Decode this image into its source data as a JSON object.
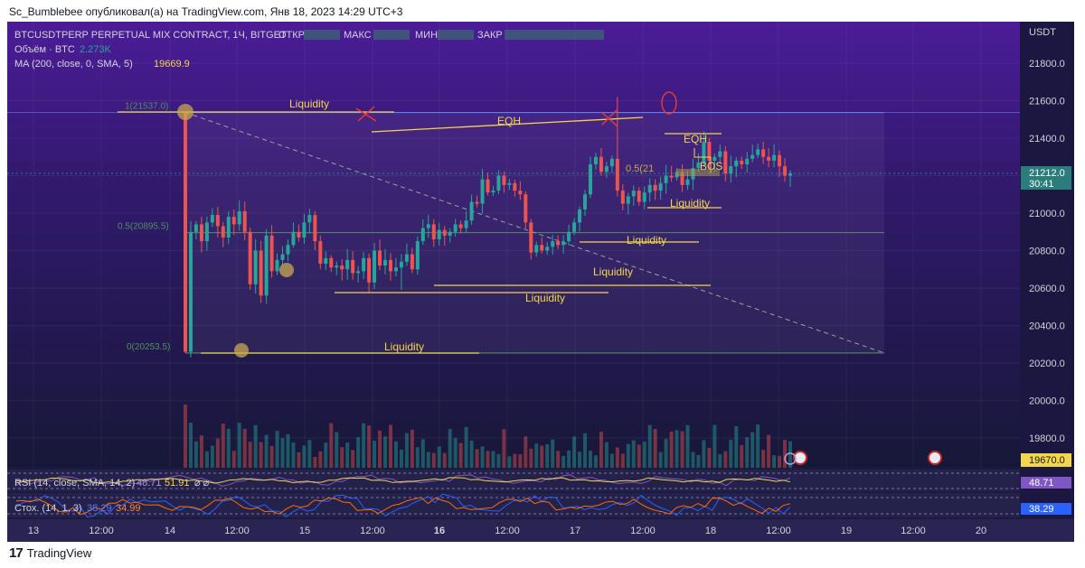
{
  "caption": "Sc_Bumblebee опубликовал(а) на TradingView.com, Янв 18, 2023 14:29 UTC+3",
  "footer": {
    "brand": "TradingView",
    "logo_icon": "tradingview-logo-icon"
  },
  "colors": {
    "bg_top": "#4a1d96",
    "bg_bottom": "#15183a",
    "up": "#26a69a",
    "down": "#ef5350",
    "annotation": "#f2d64b",
    "fib": "#5b9c5b",
    "level_blue": "#5a7cff",
    "rsi": "#7e57c2",
    "stoch_k": "#2962ff",
    "stoch_d": "#ff6d00"
  },
  "header": {
    "symbol_line": "BTCUSDTPERP PERPETUAL MIX CONTRACT, 1Ч, BITGET",
    "ohlc_labels": [
      "ОТКР",
      "МАКС",
      "МИН",
      "ЗАКР"
    ],
    "volume_label": "Объём · BTC",
    "volume_value": "2.273K",
    "ma_label": "MA (200, close, 0, SMA, 5)",
    "ma_value": "19669.9"
  },
  "price_axis": {
    "currency": "USDT",
    "ticks": [
      "21800.0",
      "21600.0",
      "21400.0",
      "21200.0",
      "21000.0",
      "20800.0",
      "20600.0",
      "20400.0",
      "20200.0",
      "20000.0",
      "19800.0"
    ],
    "last_price": "21212.0",
    "countdown": "30:41",
    "ma_badge": "19670.0"
  },
  "time_axis": {
    "ticks": [
      "13",
      "12:00",
      "14",
      "12:00",
      "15",
      "12:00",
      "16",
      "12:00",
      "17",
      "12:00",
      "18",
      "12:00",
      "19",
      "12:00",
      "20"
    ]
  },
  "fib_labels": [
    "1(21537.0)",
    "0.5(20895.5)",
    "0(20253.5)"
  ],
  "annotations": {
    "liquidity": "Liquidity",
    "eqh": "EQH",
    "bos": "BOS",
    "fib_partial": "0.5(21"
  },
  "rsi": {
    "label": "RSI (14, close, SMA, 14, 2)",
    "v1": "48.71",
    "v2": "51.91",
    "badge": "48.71"
  },
  "stoch": {
    "label": "Стох. (14, 1, 3)",
    "k": "38.29",
    "d": "34.99",
    "badge": "38.29"
  },
  "chart_data": {
    "type": "candlestick",
    "x_label_ticks": [
      "13",
      "12:00",
      "14",
      "12:00",
      "15",
      "12:00",
      "16",
      "12:00",
      "17",
      "12:00",
      "18",
      "12:00",
      "19",
      "12:00",
      "20"
    ],
    "ylim": [
      19700,
      21950
    ],
    "last_close": 21212.0,
    "ma200": 19669.9,
    "fib_levels": [
      21537.0,
      20895.5,
      20253.5
    ],
    "closes": [
      20260,
      20900,
      20940,
      20850,
      20950,
      20990,
      20930,
      20870,
      20980,
      20940,
      21010,
      20900,
      20620,
      20800,
      20560,
      20880,
      20690,
      20750,
      20780,
      20830,
      20900,
      20870,
      20950,
      20990,
      20850,
      20730,
      20760,
      20710,
      20720,
      20700,
      20750,
      20680,
      20690,
      20760,
      20630,
      20800,
      20720,
      20750,
      20690,
      20710,
      20740,
      20780,
      20700,
      20850,
      20920,
      20940,
      20860,
      20910,
      20880,
      20900,
      20940,
      20920,
      20960,
      21060,
      21050,
      21180,
      21110,
      21120,
      21200,
      21150,
      21160,
      21120,
      21100,
      20950,
      20790,
      20830,
      20800,
      20820,
      20850,
      20830,
      20850,
      20900,
      20950,
      21020,
      21100,
      21260,
      21300,
      21220,
      21250,
      21290,
      21120,
      21050,
      21090,
      21120,
      21060,
      21110,
      21150,
      21120,
      21160,
      21200,
      21190,
      21220,
      21150,
      21180,
      21240,
      21270,
      21380,
      21280,
      21300,
      21330,
      21210,
      21250,
      21280,
      21260,
      21290,
      21310,
      21340,
      21300,
      21280,
      21310,
      21250,
      21200,
      21212
    ]
  }
}
